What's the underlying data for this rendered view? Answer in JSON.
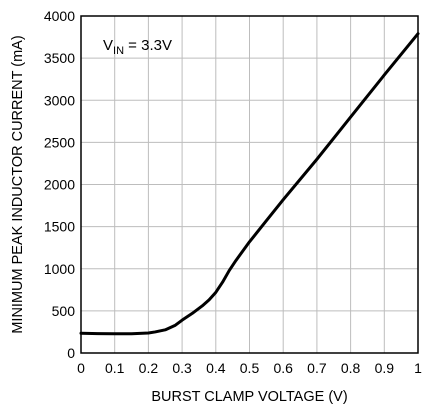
{
  "chart_data": {
    "type": "line",
    "title": "",
    "xlabel": "BURST CLAMP VOLTAGE (V)",
    "ylabel": "MINIMUM PEAK INDUCTOR CURRENT (mA)",
    "xlim": [
      0,
      1
    ],
    "ylim": [
      0,
      4000
    ],
    "x_ticks": [
      0,
      0.1,
      0.2,
      0.3,
      0.4,
      0.5,
      0.6,
      0.7,
      0.8,
      0.9,
      1
    ],
    "x_tick_labels": [
      "0",
      "0.1",
      "0.2",
      "0.3",
      "0.4",
      "0.5",
      "0.6",
      "0.7",
      "0.8",
      "0.9",
      "1"
    ],
    "y_ticks": [
      0,
      500,
      1000,
      1500,
      2000,
      2500,
      3000,
      3500,
      4000
    ],
    "y_tick_labels": [
      "0",
      "500",
      "1000",
      "1500",
      "2000",
      "2500",
      "3000",
      "3500",
      "4000"
    ],
    "grid": true,
    "annotation": {
      "main": "V",
      "subscript": "IN",
      "suffix": " = 3.3V"
    },
    "series": [
      {
        "x": [
          0,
          0.05,
          0.1,
          0.15,
          0.2,
          0.22,
          0.25,
          0.28,
          0.3,
          0.33,
          0.36,
          0.38,
          0.4,
          0.42,
          0.44,
          0.46,
          0.5,
          0.55,
          0.6,
          0.7,
          0.8,
          0.9,
          1.0
        ],
        "y": [
          235,
          230,
          228,
          228,
          237,
          250,
          275,
          330,
          390,
          470,
          560,
          630,
          720,
          840,
          980,
          1100,
          1320,
          1570,
          1820,
          2300,
          2800,
          3300,
          3790
        ]
      }
    ]
  }
}
